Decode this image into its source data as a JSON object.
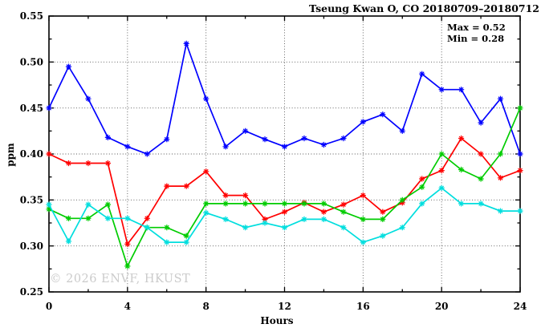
{
  "figure": {
    "background": "#ffffff",
    "watermark": "© 2026 ENVF, HKUST"
  },
  "chart_data": {
    "type": "line",
    "title": "Tseung Kwan O, CO 20180709–20180712",
    "xlabel": "Hours",
    "ylabel": "ppm",
    "xlim": [
      0,
      24
    ],
    "ylim": [
      0.25,
      0.55
    ],
    "grid": "dotted, major ticks only",
    "legend": "none",
    "marker": "asterisk",
    "annotations": [
      "Max = 0.52",
      "Min = 0.28"
    ],
    "xticks_major": [
      0,
      4,
      8,
      12,
      16,
      20,
      24
    ],
    "xtick_labels": [
      "0",
      "4",
      "8",
      "12",
      "16",
      "20",
      "24"
    ],
    "xticks_minor": [
      2,
      6,
      10,
      14,
      18,
      22
    ],
    "yticks_major": [
      0.25,
      0.3,
      0.35,
      0.4,
      0.45,
      0.5,
      0.55
    ],
    "ytick_labels": [
      "0.25",
      "0.30",
      "0.35",
      "0.40",
      "0.45",
      "0.50",
      "0.55"
    ],
    "yticks_minor": [
      0.275,
      0.325,
      0.375,
      0.425,
      0.475,
      0.525
    ],
    "x": [
      0,
      1,
      2,
      3,
      4,
      5,
      6,
      7,
      8,
      9,
      10,
      11,
      12,
      13,
      14,
      15,
      16,
      17,
      18,
      19,
      20,
      21,
      22,
      23,
      24
    ],
    "series": [
      {
        "name": "series-blue",
        "color": "#0000ff",
        "values": [
          0.45,
          0.495,
          0.46,
          0.418,
          0.408,
          0.4,
          0.416,
          0.52,
          0.46,
          0.408,
          0.425,
          0.416,
          0.408,
          0.417,
          0.41,
          0.417,
          0.435,
          0.443,
          0.425,
          0.487,
          0.47,
          0.47,
          0.434,
          0.46,
          0.4
        ]
      },
      {
        "name": "series-red",
        "color": "#ff0000",
        "values": [
          0.4,
          0.39,
          0.39,
          0.39,
          0.302,
          0.33,
          0.365,
          0.365,
          0.381,
          0.355,
          0.355,
          0.329,
          0.337,
          0.347,
          0.337,
          0.345,
          0.355,
          0.337,
          0.347,
          0.373,
          0.382,
          0.417,
          0.4,
          0.374,
          0.382
        ]
      },
      {
        "name": "series-green",
        "color": "#00cc00",
        "values": [
          0.34,
          0.33,
          0.33,
          0.345,
          0.278,
          0.32,
          0.32,
          0.311,
          0.346,
          0.346,
          0.346,
          0.346,
          0.346,
          0.346,
          0.346,
          0.337,
          0.329,
          0.329,
          0.35,
          0.364,
          0.4,
          0.383,
          0.373,
          0.4,
          0.45
        ]
      },
      {
        "name": "series-cyan",
        "color": "#00dede",
        "values": [
          0.345,
          0.305,
          0.345,
          0.33,
          0.33,
          0.32,
          0.304,
          0.304,
          0.336,
          0.329,
          0.32,
          0.325,
          0.32,
          0.329,
          0.329,
          0.32,
          0.304,
          0.311,
          0.32,
          0.346,
          0.363,
          0.346,
          0.346,
          0.338,
          0.338
        ]
      }
    ]
  }
}
